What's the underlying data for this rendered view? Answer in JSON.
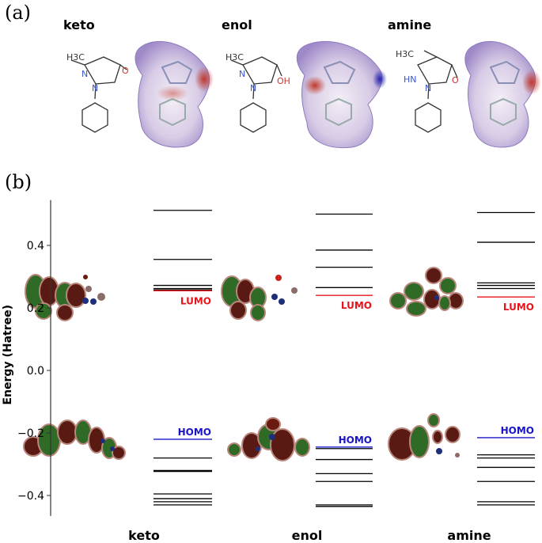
{
  "panel_a": {
    "label": "(a)",
    "tautomers": [
      {
        "name": "keto",
        "substituent": "H3C",
        "heteroatoms": [
          "N",
          "N",
          "O"
        ]
      },
      {
        "name": "enol",
        "substituent": "H3C",
        "heteroatoms": [
          "N",
          "N",
          "OH"
        ]
      },
      {
        "name": "amine",
        "substituent": "H3C",
        "heteroatoms": [
          "HN",
          "N",
          "O"
        ]
      }
    ]
  },
  "panel_b": {
    "label": "(b)"
  },
  "colors": {
    "occupied": "#000000",
    "lumo": "#e8141c",
    "homo": "#1a14c8"
  },
  "chart_data": {
    "type": "energy_level_diagram",
    "ylabel": "Energy (Hatree)",
    "ylim": [
      -0.45,
      0.55
    ],
    "yticks": [
      "0.4",
      "0.2",
      "0.0",
      "−0.2",
      "−0.4"
    ],
    "ytick_values": [
      0.4,
      0.2,
      0.0,
      -0.2,
      -0.4
    ],
    "categories": [
      "keto",
      "enol",
      "amine"
    ],
    "series": [
      {
        "category": "keto",
        "lumo": 0.255,
        "homo": -0.22,
        "levels": [
          0.512,
          0.355,
          0.272,
          0.262,
          0.258,
          -0.28,
          -0.32,
          -0.323,
          -0.395,
          -0.41,
          -0.42,
          -0.43
        ]
      },
      {
        "category": "enol",
        "lumo": 0.24,
        "homo": -0.245,
        "levels": [
          0.5,
          0.385,
          0.33,
          0.265,
          -0.25,
          -0.285,
          -0.33,
          -0.355,
          -0.43,
          -0.435
        ]
      },
      {
        "category": "amine",
        "lumo": 0.235,
        "homo": -0.215,
        "levels": [
          0.505,
          0.41,
          0.28,
          0.272,
          0.262,
          -0.27,
          -0.28,
          -0.31,
          -0.355,
          -0.42,
          -0.43
        ]
      }
    ],
    "annotations": {
      "lumo": "LUMO",
      "homo": "HOMO"
    }
  }
}
